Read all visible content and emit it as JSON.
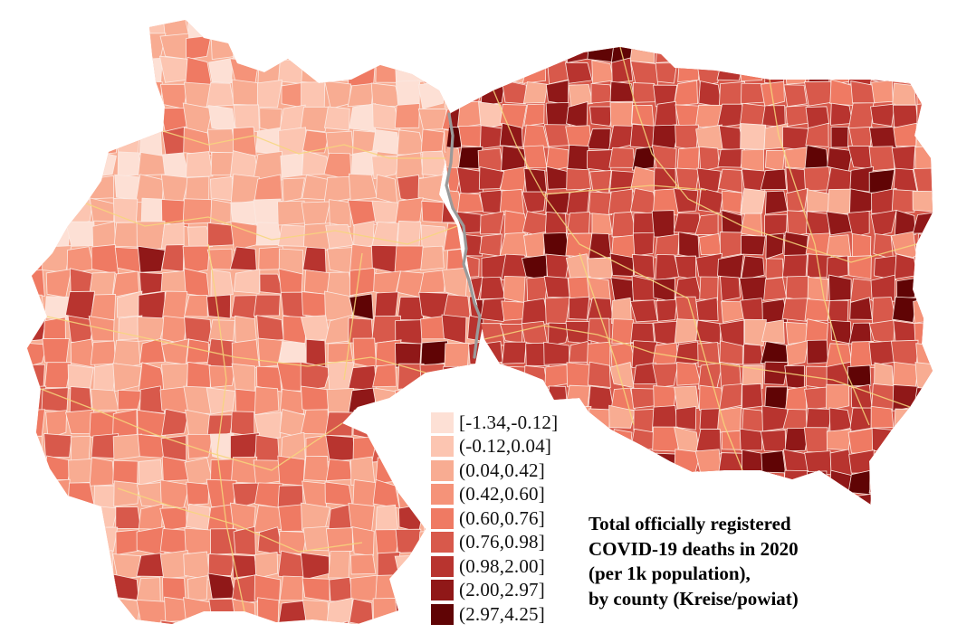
{
  "title_lines": [
    "Total officially registered",
    "COVID-19 deaths in 2020",
    "(per 1k population),",
    "by county (Kreise/powiat)"
  ],
  "legend": [
    {
      "label": "[-1.34,-0.12]",
      "color": "#fde0d5"
    },
    {
      "label": "(-0.12,0.04]",
      "color": "#fcc5b1"
    },
    {
      "label": "(0.04,0.42]",
      "color": "#f8ac92"
    },
    {
      "label": "(0.42,0.60]",
      "color": "#f59379"
    },
    {
      "label": "(0.60,0.76]",
      "color": "#ef7a63"
    },
    {
      "label": "(0.76,0.98]",
      "color": "#d8594b"
    },
    {
      "label": "(0.98,2.00]",
      "color": "#b8342f"
    },
    {
      "label": "(2.00,2.97]",
      "color": "#901818"
    },
    {
      "label": "(2.97,4.25]",
      "color": "#600405"
    }
  ],
  "colors": {
    "county_border": "#fbe9e2",
    "state_border": "#f7d77c",
    "river_border": "#9a9a9a"
  }
}
